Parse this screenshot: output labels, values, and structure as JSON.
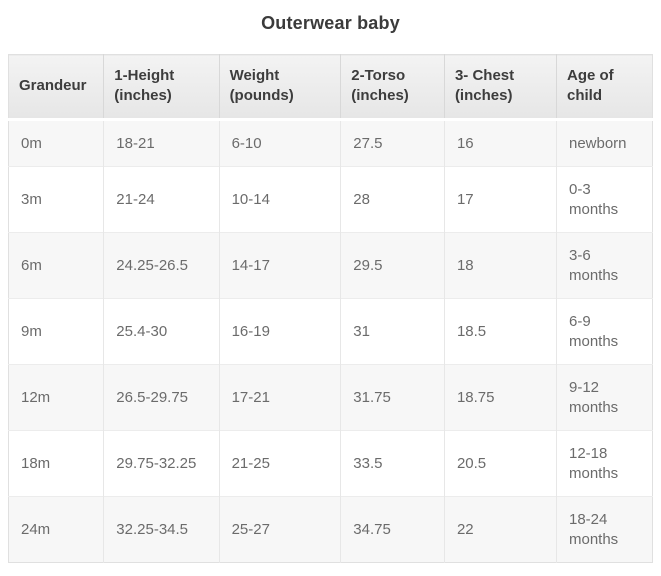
{
  "title": "Outerwear baby",
  "table": {
    "columns": [
      "Grandeur",
      "1-Height (inches)",
      "Weight (pounds)",
      "2-Torso (inches)",
      "3- Chest (inches)",
      "Age of child"
    ],
    "rows": [
      [
        "0m",
        "18-21",
        "6-10",
        "27.5",
        "16",
        "newborn"
      ],
      [
        "3m",
        "21-24",
        "10-14",
        "28",
        "17",
        "0-3 months"
      ],
      [
        "6m",
        "24.25-26.5",
        "14-17",
        "29.5",
        "18",
        "3-6 months"
      ],
      [
        "9m",
        "25.4-30",
        "16-19",
        "31",
        "18.5",
        "6-9 months"
      ],
      [
        "12m",
        "26.5-29.75",
        "17-21",
        "31.75",
        "18.75",
        "9-12 months"
      ],
      [
        "18m",
        "29.75-32.25",
        "21-25",
        "33.5",
        "20.5",
        "12-18 months"
      ],
      [
        "24m",
        "32.25-34.5",
        "25-27",
        "34.75",
        "22",
        "18-24 months"
      ]
    ]
  },
  "chart_data": {
    "type": "table",
    "title": "Outerwear baby",
    "columns": [
      "Grandeur",
      "1-Height (inches)",
      "Weight (pounds)",
      "2-Torso (inches)",
      "3- Chest (inches)",
      "Age of child"
    ],
    "rows": [
      [
        "0m",
        "18-21",
        "6-10",
        "27.5",
        "16",
        "newborn"
      ],
      [
        "3m",
        "21-24",
        "10-14",
        "28",
        "17",
        "0-3 months"
      ],
      [
        "6m",
        "24.25-26.5",
        "14-17",
        "29.5",
        "18",
        "3-6 months"
      ],
      [
        "9m",
        "25.4-30",
        "16-19",
        "31",
        "18.5",
        "6-9 months"
      ],
      [
        "12m",
        "26.5-29.75",
        "17-21",
        "31.75",
        "18.75",
        "9-12 months"
      ],
      [
        "18m",
        "29.75-32.25",
        "21-25",
        "33.5",
        "20.5",
        "12-18 months"
      ],
      [
        "24m",
        "32.25-34.5",
        "25-27",
        "34.75",
        "22",
        "18-24 months"
      ]
    ],
    "layout_hints": {
      "alternating_row_shading": true,
      "shaded_rows": [
        "0m",
        "6m",
        "12m",
        "24m"
      ],
      "header_style": "bold gray gradient band",
      "alignment": "left"
    }
  },
  "colors": {
    "header_bg_top": "#f3f3f3",
    "header_bg_bottom": "#e6e6e6",
    "header_text": "#3d3d3d",
    "body_text": "#6b6b6b",
    "alt_row_bg": "#f7f7f7",
    "border": "#e0e0e0",
    "title_text": "#3b3b3b"
  }
}
